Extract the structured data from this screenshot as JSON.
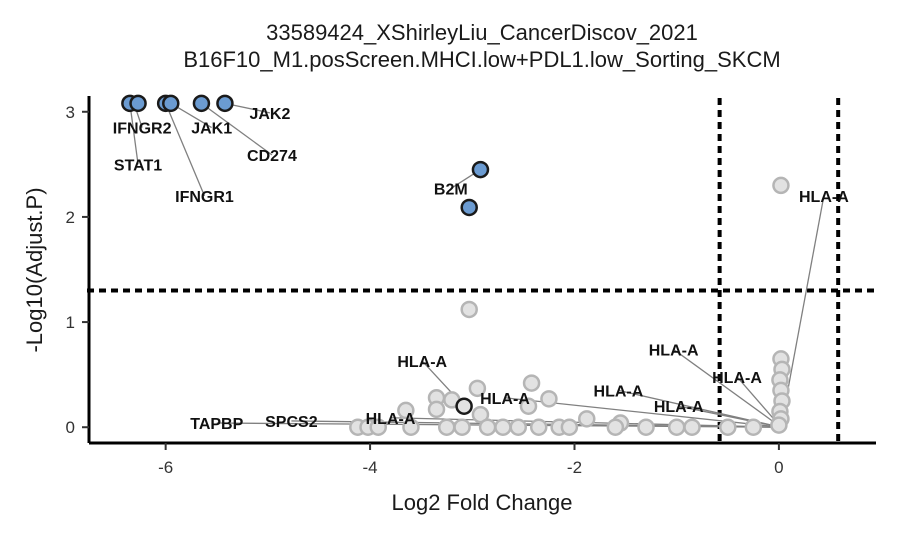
{
  "chart_data": {
    "type": "scatter",
    "title_line1": "33589424_XShirleyLiu_CancerDiscov_2021",
    "title_line2": "B16F10_M1.posScreen.MHCI.low+PDL1.low_Sorting_SKCM",
    "xlabel": "Log2 Fold Change",
    "ylabel": "-Log10(Adjust.P)",
    "xlim": [
      -6.75,
      0.95
    ],
    "ylim": [
      -0.15,
      3.15
    ],
    "xticks": [
      -6,
      -4,
      -2,
      0
    ],
    "yticks": [
      0,
      1,
      2,
      3
    ],
    "thresholds": {
      "x": [
        -0.58,
        0.58
      ],
      "y": 1.3
    },
    "grid": false,
    "legend": "none",
    "colors": {
      "significant": "#6b9bd1",
      "nonsignificant": "#cccccc",
      "label_line": "#808080"
    },
    "anchor": [
      0.02,
      0.0
    ],
    "significant_points": [
      {
        "x": -6.35,
        "y": 3.08
      },
      {
        "x": -6.27,
        "y": 3.08
      },
      {
        "x": -6.0,
        "y": 3.08
      },
      {
        "x": -5.95,
        "y": 3.08
      },
      {
        "x": -5.65,
        "y": 3.08
      },
      {
        "x": -5.42,
        "y": 3.08
      },
      {
        "x": -2.92,
        "y": 2.45
      },
      {
        "x": -3.03,
        "y": 2.09
      }
    ],
    "nonsignificant_points": [
      {
        "x": 0.02,
        "y": 2.3
      },
      {
        "x": -3.03,
        "y": 1.12
      },
      {
        "x": 0.02,
        "y": 0.65
      },
      {
        "x": 0.03,
        "y": 0.55
      },
      {
        "x": 0.01,
        "y": 0.45
      },
      {
        "x": 0.02,
        "y": 0.35
      },
      {
        "x": 0.03,
        "y": 0.25
      },
      {
        "x": 0.01,
        "y": 0.15
      },
      {
        "x": 0.02,
        "y": 0.08
      },
      {
        "x": 0.0,
        "y": 0.02
      },
      {
        "x": -2.42,
        "y": 0.42
      },
      {
        "x": -2.95,
        "y": 0.37
      },
      {
        "x": -3.35,
        "y": 0.28
      },
      {
        "x": -3.2,
        "y": 0.26
      },
      {
        "x": -2.25,
        "y": 0.27
      },
      {
        "x": -3.65,
        "y": 0.16
      },
      {
        "x": -3.35,
        "y": 0.17
      },
      {
        "x": -2.92,
        "y": 0.12
      },
      {
        "x": -2.45,
        "y": 0.2
      },
      {
        "x": -1.88,
        "y": 0.08
      },
      {
        "x": -1.55,
        "y": 0.04
      },
      {
        "x": -4.12,
        "y": 0.0
      },
      {
        "x": -4.02,
        "y": 0.0
      },
      {
        "x": -3.92,
        "y": 0.0
      },
      {
        "x": -3.6,
        "y": 0.0
      },
      {
        "x": -3.25,
        "y": 0.0
      },
      {
        "x": -3.1,
        "y": 0.0
      },
      {
        "x": -2.85,
        "y": 0.0
      },
      {
        "x": -2.7,
        "y": 0.0
      },
      {
        "x": -2.55,
        "y": 0.0
      },
      {
        "x": -2.35,
        "y": 0.0
      },
      {
        "x": -2.15,
        "y": 0.0
      },
      {
        "x": -2.05,
        "y": 0.0
      },
      {
        "x": -1.6,
        "y": 0.0
      },
      {
        "x": -1.3,
        "y": 0.0
      },
      {
        "x": -1.0,
        "y": 0.0
      },
      {
        "x": -0.85,
        "y": 0.0
      },
      {
        "x": -0.5,
        "y": 0.0
      },
      {
        "x": -0.25,
        "y": 0.0
      }
    ],
    "highlighted_points": [
      {
        "x": -3.08,
        "y": 0.2
      }
    ],
    "labels": [
      {
        "text": "IFNGR2",
        "x": -6.23,
        "y": 2.85,
        "px": -6.31,
        "py": 3.08
      },
      {
        "text": "STAT1",
        "x": -6.27,
        "y": 2.5,
        "px": -6.35,
        "py": 3.08
      },
      {
        "text": "IFNGR1",
        "x": -5.62,
        "y": 2.2,
        "px": -6.0,
        "py": 3.08
      },
      {
        "text": "JAK1",
        "x": -5.55,
        "y": 2.85,
        "px": -5.95,
        "py": 3.08
      },
      {
        "text": "JAK2",
        "x": -4.98,
        "y": 2.99,
        "px": -5.42,
        "py": 3.08
      },
      {
        "text": "CD274",
        "x": -4.96,
        "y": 2.59,
        "px": -5.65,
        "py": 3.08
      },
      {
        "text": "B2M",
        "x": -3.21,
        "y": 2.27,
        "px": -2.92,
        "py": 2.45
      },
      {
        "text": "HLA-A",
        "x": 0.44,
        "y": 2.2,
        "px": 0.02,
        "py": 0.0
      },
      {
        "text": "HLA-A",
        "x": -1.03,
        "y": 0.74,
        "px": 0.02,
        "py": 0.0
      },
      {
        "text": "HLA-A",
        "x": -0.41,
        "y": 0.48,
        "px": 0.02,
        "py": 0.0
      },
      {
        "text": "HLA-A",
        "x": -3.49,
        "y": 0.63,
        "px": -3.08,
        "py": 0.2
      },
      {
        "text": "HLA-A",
        "x": -2.68,
        "y": 0.28,
        "px": 0.02,
        "py": 0.0
      },
      {
        "text": "HLA-A",
        "x": -1.57,
        "y": 0.35,
        "px": 0.02,
        "py": 0.0
      },
      {
        "text": "HLA-A",
        "x": -0.98,
        "y": 0.2,
        "px": 0.02,
        "py": 0.0
      },
      {
        "text": "HLA-A",
        "x": -3.8,
        "y": 0.09,
        "px": 0.02,
        "py": 0.0
      },
      {
        "text": "TAPBP",
        "x": -5.5,
        "y": 0.04,
        "px": 0.02,
        "py": 0.0
      },
      {
        "text": "SPCS2",
        "x": -4.77,
        "y": 0.06,
        "px": 0.02,
        "py": 0.0
      }
    ]
  }
}
